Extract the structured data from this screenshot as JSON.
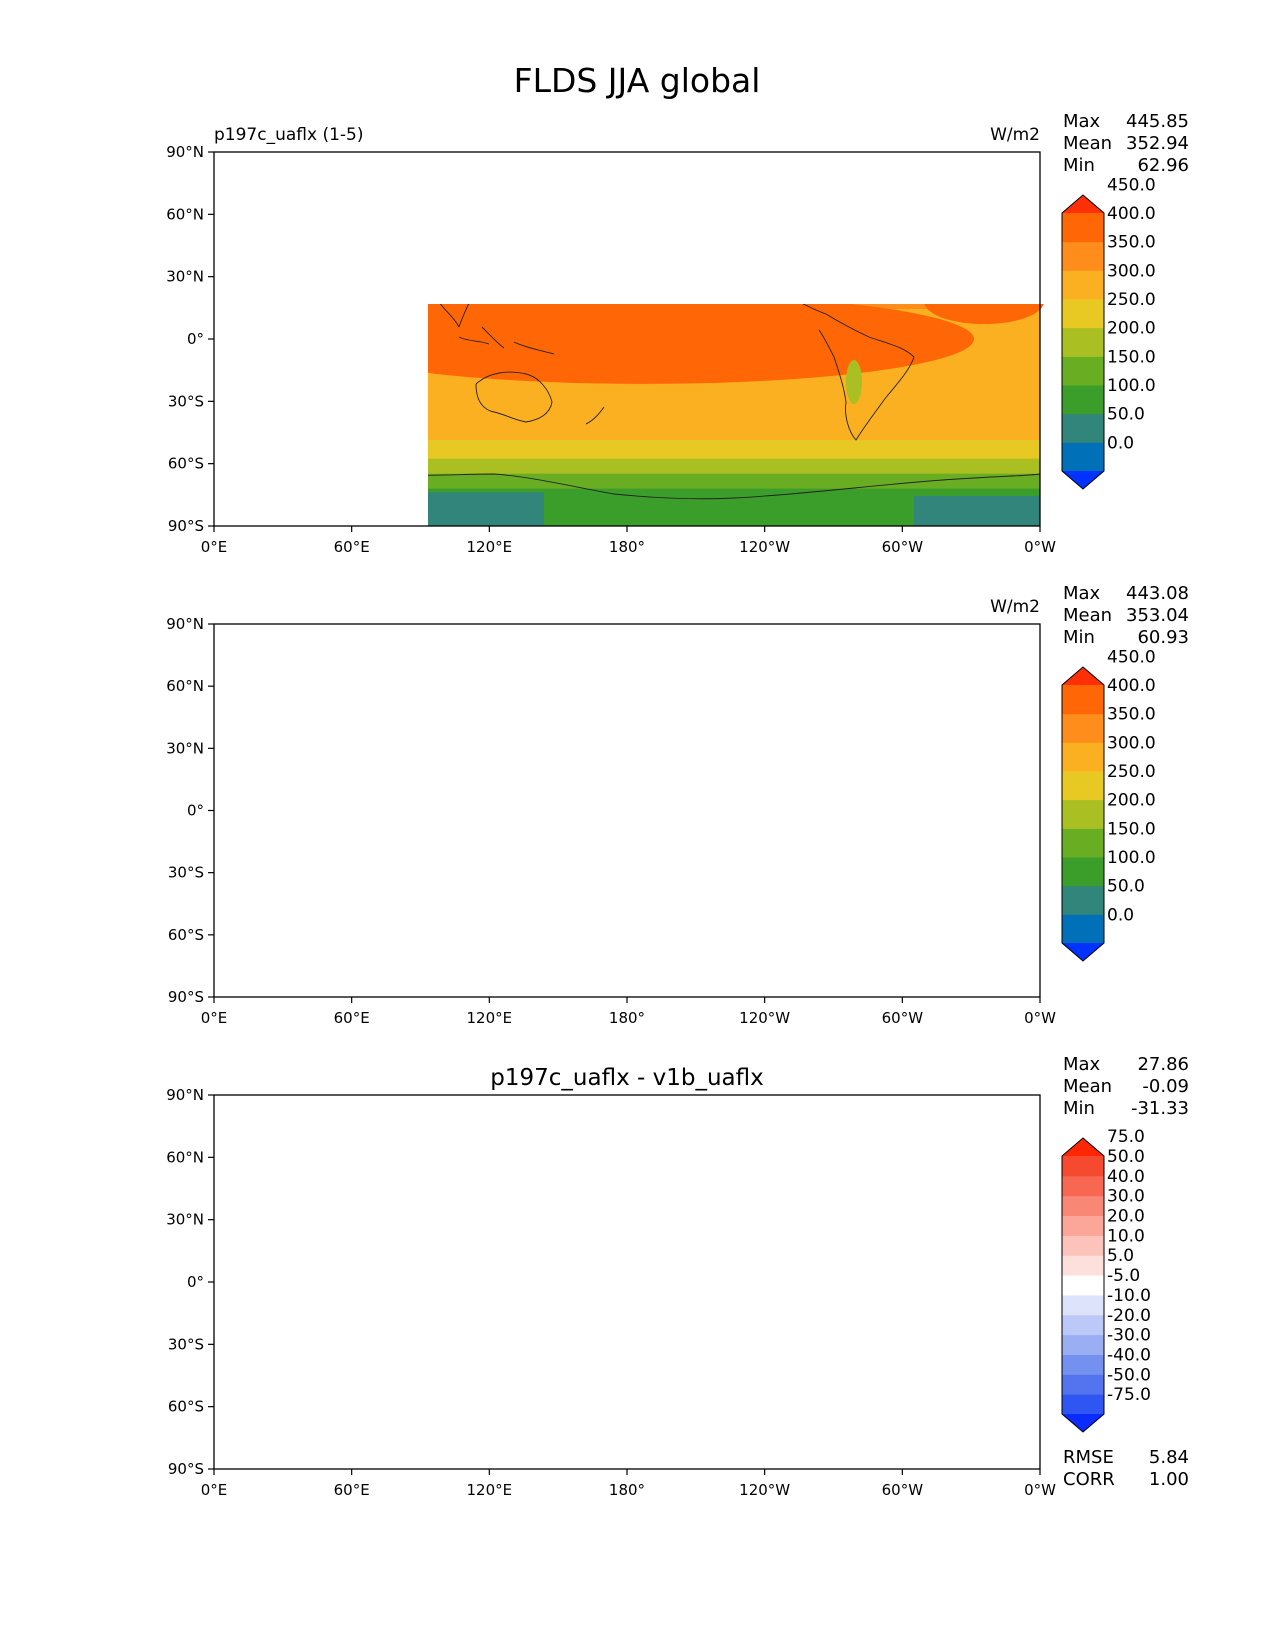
{
  "title": "FLDS JJA global",
  "x_ticks": [
    "0°E",
    "60°E",
    "120°E",
    "180°",
    "120°W",
    "60°W",
    "0°W"
  ],
  "y_ticks": [
    "90°N",
    "60°N",
    "30°N",
    "0°",
    "30°S",
    "60°S",
    "90°S"
  ],
  "panels": [
    {
      "left_title": "p197c_uaflx (1-5)",
      "center_title": "",
      "units": "W/m2",
      "stats": [
        {
          "label": "Max",
          "value": "445.85"
        },
        {
          "label": "Mean",
          "value": "352.94"
        },
        {
          "label": "Min",
          "value": "62.96"
        }
      ],
      "colorbar": {
        "colors": [
          "#0033ff",
          "#0070b8",
          "#31857a",
          "#3b9e2a",
          "#69ae22",
          "#aabf22",
          "#e8c822",
          "#fbb022",
          "#ff8d1c",
          "#ff6606",
          "#ff3006"
        ],
        "labels": [
          "0.0",
          "50.0",
          "100.0",
          "150.0",
          "200.0",
          "250.0",
          "300.0",
          "350.0",
          "400.0",
          "450.0"
        ]
      }
    },
    {
      "left_title": "",
      "center_title": "",
      "units": "W/m2",
      "stats": [
        {
          "label": "Max",
          "value": "443.08"
        },
        {
          "label": "Mean",
          "value": "353.04"
        },
        {
          "label": "Min",
          "value": "60.93"
        }
      ],
      "colorbar": {
        "colors": [
          "#0033ff",
          "#0070b8",
          "#31857a",
          "#3b9e2a",
          "#69ae22",
          "#aabf22",
          "#e8c822",
          "#fbb022",
          "#ff8d1c",
          "#ff6606",
          "#ff3006"
        ],
        "labels": [
          "0.0",
          "50.0",
          "100.0",
          "150.0",
          "200.0",
          "250.0",
          "300.0",
          "350.0",
          "400.0",
          "450.0"
        ]
      }
    },
    {
      "left_title": "",
      "center_title": "p197c_uaflx - v1b_uaflx",
      "units": "",
      "stats": [
        {
          "label": "Max",
          "value": "27.86"
        },
        {
          "label": "Mean",
          "value": "-0.09"
        },
        {
          "label": "Min",
          "value": "-31.33"
        }
      ],
      "bottom_stats": [
        {
          "label": "RMSE",
          "value": "5.84"
        },
        {
          "label": "CORR",
          "value": "1.00"
        }
      ],
      "colorbar": {
        "colors": [
          "#0a2cff",
          "#2f55f2",
          "#5474ef",
          "#7591f0",
          "#9aaef4",
          "#bcc8f8",
          "#dde3fb",
          "#ffffff",
          "#fde0dc",
          "#fcc3bb",
          "#fba698",
          "#f98776",
          "#f86752",
          "#f64a30",
          "#ff2606"
        ],
        "labels": [
          "-75.0",
          "-50.0",
          "-40.0",
          "-30.0",
          "-20.0",
          "-10.0",
          "-5.0",
          "5.0",
          "10.0",
          "20.0",
          "30.0",
          "40.0",
          "50.0",
          "75.0"
        ]
      }
    }
  ]
}
